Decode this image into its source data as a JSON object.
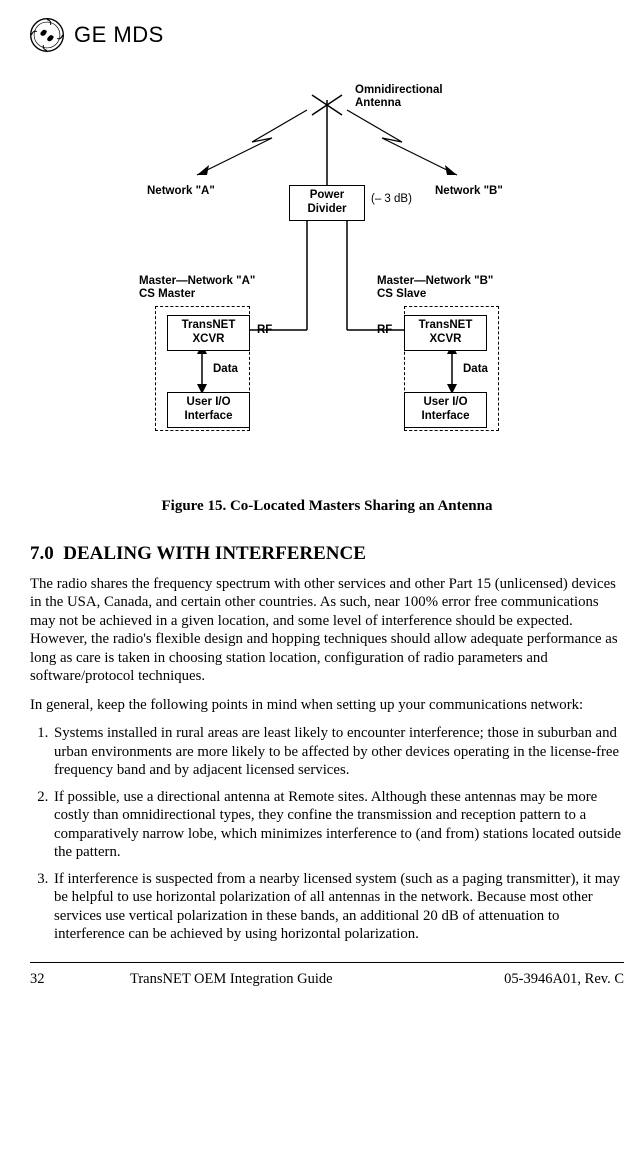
{
  "header": {
    "brand": "GE MDS"
  },
  "diagram": {
    "antenna_label": "Omnidirectional\nAntenna",
    "network_a": "Network \"A\"",
    "network_b": "Network \"B\"",
    "power_divider": "Power\nDivider",
    "db_note": "(– 3 dB)",
    "master_a": "Master—Network \"A\"\nCS Master",
    "master_b": "Master—Network \"B\"\nCS Slave",
    "xcvr": "TransNET\nXCVR",
    "rf": "RF",
    "data": "Data",
    "user_io": "User I/O\nInterface",
    "colors": {
      "line": "#000000",
      "bg": "#ffffff"
    },
    "layout_notes": "see SVG coords"
  },
  "figure_caption": "Figure 15. Co-Located Masters Sharing an Antenna",
  "section": {
    "number": "7.0",
    "title": "DEALING WITH INTERFERENCE"
  },
  "para1": "The radio shares the frequency spectrum with other services and other Part 15 (unlicensed) devices in the USA, Canada, and certain other countries. As such, near 100% error free communications may not be achieved in a given location, and some level of interference should be expected. However, the radio's flexible design and hopping techniques should allow adequate performance as long as care is taken in choosing station location, configuration of radio parameters and software/protocol techniques.",
  "para2": "In general, keep the following points in mind when setting up your communications network:",
  "points": [
    "Systems installed in rural areas are least likely to encounter interference; those in suburban and urban environments are more likely to be affected by other devices operating in the license-free frequency band and by adjacent licensed services.",
    "If possible, use a directional antenna at Remote sites. Although these antennas may be more costly than omnidirectional types, they confine the transmission and reception pattern to a comparatively narrow lobe, which minimizes interference to (and from) stations located outside the pattern.",
    "If interference is suspected from a nearby licensed system (such as a paging transmitter), it may be helpful to use horizontal polarization of all antennas in the network. Because most other services use vertical polarization in these bands, an additional 20 dB of attenuation to interference can be achieved by using horizontal polarization."
  ],
  "footer": {
    "page": "32",
    "doc_title": "TransNET OEM Integration Guide",
    "doc_id": "05-3946A01, Rev. C"
  }
}
